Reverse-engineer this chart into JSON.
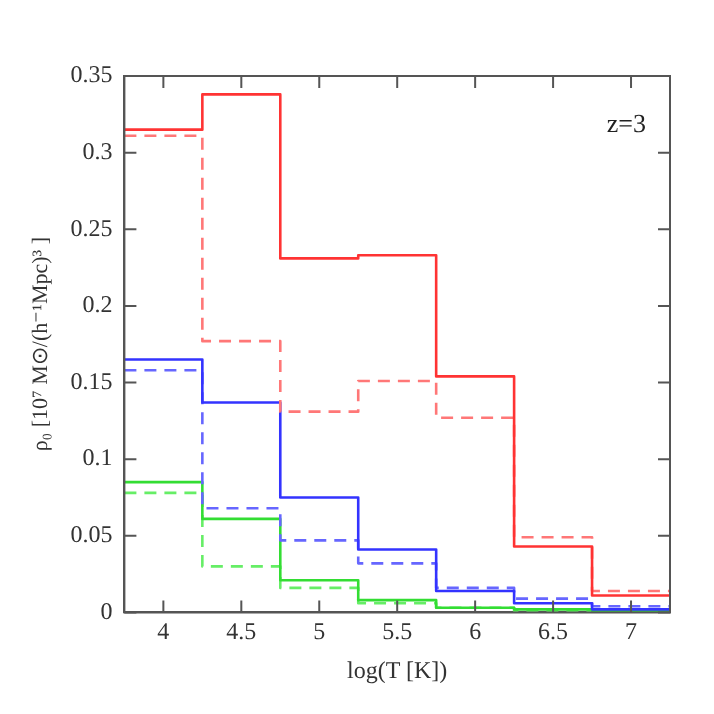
{
  "chart_data": {
    "type": "histogram",
    "xlabel": "log(T [K])",
    "ylabel": "ρ₀ [10⁷ M⊙/(h⁻¹Mpc)³ ]",
    "annotations": [
      "z=3"
    ],
    "bins": [
      3.75,
      4.25,
      4.75,
      5.25,
      5.75,
      6.25,
      6.75,
      7.25
    ],
    "series": [
      {
        "color": "#ff3333",
        "line_style": "solid",
        "values": [
          0.315,
          0.338,
          0.231,
          0.233,
          0.154,
          0.043,
          0.011
        ]
      },
      {
        "color": "#ff7777",
        "line_style": "dashed",
        "values": [
          0.311,
          0.177,
          0.131,
          0.151,
          0.127,
          0.049,
          0.014
        ]
      },
      {
        "color": "#3333ff",
        "line_style": "solid",
        "values": [
          0.165,
          0.137,
          0.075,
          0.041,
          0.014,
          0.006,
          0.002
        ]
      },
      {
        "color": "#6666ff",
        "line_style": "dashed",
        "values": [
          0.158,
          0.068,
          0.047,
          0.032,
          0.016,
          0.009,
          0.004
        ]
      },
      {
        "color": "#33dd33",
        "line_style": "solid",
        "values": [
          0.085,
          0.061,
          0.021,
          0.008,
          0.003,
          0.002,
          0.001
        ]
      },
      {
        "color": "#66ee66",
        "line_style": "dashed",
        "values": [
          0.078,
          0.03,
          0.016,
          0.006,
          0.003,
          0.001,
          0.001
        ]
      }
    ],
    "xlim": [
      3.75,
      7.25
    ],
    "xticks": [
      4,
      4.5,
      5,
      5.5,
      6,
      6.5,
      7
    ],
    "ylim": [
      0,
      0.35
    ],
    "yticks": [
      0,
      0.05,
      0.1,
      0.15,
      0.2,
      0.25,
      0.3,
      0.35
    ],
    "grid": false,
    "legend": false
  }
}
